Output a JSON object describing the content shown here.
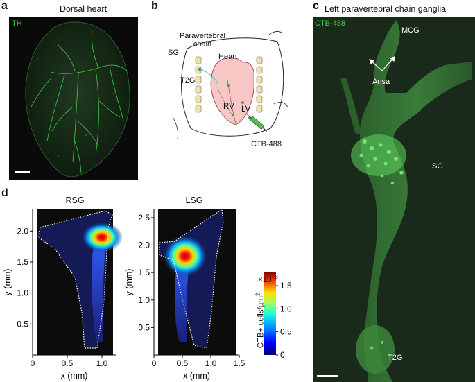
{
  "panels": {
    "a": {
      "letter": "a",
      "title": "Dorsal heart",
      "stain": "TH"
    },
    "b": {
      "letter": "b",
      "labels": {
        "chain_1": "Paravertebral",
        "chain_2": "chain",
        "heart": "Heart",
        "sg": "SG",
        "t2g": "T2G",
        "rv": "RV",
        "lv": "LV",
        "tracer": "CTB-488"
      }
    },
    "c": {
      "letter": "c",
      "title": "Left paravertebral chain ganglia",
      "stain": "CTB-488",
      "labels": {
        "mcg": "MCG",
        "ansa": "Ansa",
        "sg": "SG",
        "t2g": "T2G"
      }
    },
    "d": {
      "letter": "d",
      "rsg_title": "RSG",
      "lsg_title": "LSG"
    }
  },
  "colors": {
    "green": "#3fd23f",
    "cyan_label": "#1fa86b"
  },
  "chart_data": [
    {
      "type": "heatmap",
      "title": "RSG",
      "xlabel": "x (mm)",
      "ylabel": "y (mm)",
      "xlim": [
        0,
        1.2
      ],
      "ylim": [
        0,
        2.35
      ],
      "xticks": [
        "0",
        "0.5",
        "1.0"
      ],
      "yticks": [
        "0.5",
        "1.0",
        "1.5",
        "2.0"
      ],
      "hotspot": {
        "x": 1.0,
        "y": 1.9
      }
    },
    {
      "type": "heatmap",
      "title": "LSG",
      "xlabel": "x (mm)",
      "ylabel": "y (mm)",
      "xlim": [
        0,
        1.5
      ],
      "ylim": [
        0,
        2.65
      ],
      "xticks": [
        "0",
        "0.5",
        "1.0",
        "1.5"
      ],
      "yticks": [
        "0.5",
        "1.0",
        "1.5",
        "2.0",
        "2.5"
      ],
      "hotspot": {
        "x": 0.55,
        "y": 1.8
      }
    }
  ],
  "colorbar": {
    "label": "CTB+ cells/µm²",
    "label_main": "CTB+ cells/µm",
    "label_sup": "2",
    "exponent_main": "×10",
    "exponent_sup": "−3",
    "ticks": [
      "0",
      "0.5",
      "1.0",
      "1.5"
    ],
    "range": [
      0,
      1.8
    ]
  }
}
